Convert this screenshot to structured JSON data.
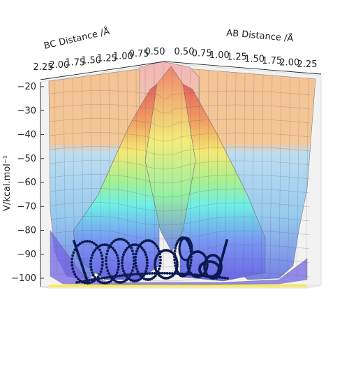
{
  "chart_data": {
    "type": "surface3d",
    "title": "",
    "ylabel": "V/kcal.mol⁻¹",
    "ab_axis": {
      "label": "AB Distance /Å",
      "ticks": [
        "0.50",
        "0.75",
        "1.00",
        "1.25",
        "1.50",
        "1.75",
        "2.00",
        "2.25"
      ],
      "range": [
        0.5,
        2.25
      ]
    },
    "bc_axis": {
      "label": "BC Distance /Å",
      "ticks": [
        "2.25",
        "2.00",
        "1.75",
        "1.50",
        "1.25",
        "1.00",
        "0.75",
        "0.50"
      ],
      "range": [
        0.5,
        2.25
      ]
    },
    "z_axis": {
      "label": "V/kcal.mol⁻¹",
      "ticks": [
        -20,
        -30,
        -40,
        -50,
        -60,
        -70,
        -80,
        -90,
        -100
      ],
      "range": [
        -104,
        -20
      ]
    },
    "colormap": "jet",
    "surface_alpha": 0.35,
    "grid": true,
    "trajectory": {
      "color": "#0b1a4f",
      "description": "dotted black trajectory oscillating near the bottom of the potential wells"
    },
    "floor_line_color": "#ffeb3b"
  }
}
